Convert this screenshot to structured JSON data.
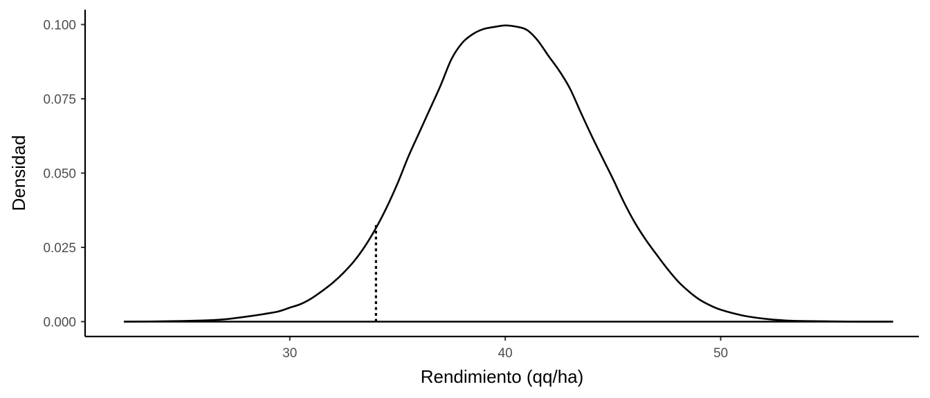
{
  "chart_data": {
    "type": "area",
    "xlabel": "Rendimiento (qq/ha)",
    "ylabel": "Densidad",
    "x_ticks": [
      30,
      40,
      50
    ],
    "y_ticks": [
      0.0,
      0.025,
      0.05,
      0.075,
      0.1
    ],
    "x_tick_labels": [
      "30",
      "40",
      "50"
    ],
    "y_tick_labels": [
      "0.000",
      "0.025",
      "0.050",
      "0.075",
      "0.100"
    ],
    "xlim": [
      20.5,
      59.2
    ],
    "ylim": [
      -0.005,
      0.105
    ],
    "grid": false,
    "colors": {
      "line": "#000000",
      "tick_text": "#4d4d4d",
      "background": "#ffffff"
    },
    "series": [
      {
        "x": [
          22.3,
          24,
          26,
          27,
          28,
          29,
          29.5,
          30,
          30.5,
          31,
          31.5,
          32,
          32.5,
          33,
          33.5,
          34,
          34.5,
          35,
          35.5,
          36,
          36.5,
          37,
          37.5,
          38,
          38.5,
          39,
          39.5,
          40,
          40.5,
          41,
          41.5,
          42,
          42.5,
          43,
          43.5,
          44,
          44.5,
          45,
          45.5,
          46,
          46.5,
          47,
          47.5,
          48,
          48.5,
          49,
          49.5,
          50,
          51,
          52,
          53,
          54,
          55,
          56,
          58
        ],
        "y": [
          0.0,
          0.0001,
          0.0004,
          0.0008,
          0.0017,
          0.0028,
          0.0035,
          0.0047,
          0.0059,
          0.0078,
          0.0103,
          0.0131,
          0.0165,
          0.0205,
          0.0255,
          0.0315,
          0.0385,
          0.0465,
          0.0555,
          0.0635,
          0.0715,
          0.0795,
          0.0883,
          0.0938,
          0.0968,
          0.0985,
          0.0992,
          0.0997,
          0.0993,
          0.0982,
          0.0947,
          0.0895,
          0.0845,
          0.0785,
          0.0705,
          0.0627,
          0.0553,
          0.048,
          0.0403,
          0.0335,
          0.0278,
          0.0228,
          0.018,
          0.0137,
          0.0103,
          0.0075,
          0.0055,
          0.004,
          0.0021,
          0.001,
          0.0004,
          0.0002,
          0.0001,
          0.0,
          0.0
        ]
      }
    ],
    "marker": {
      "x": 34,
      "y_top": 0.0325,
      "style": "dotted"
    }
  }
}
